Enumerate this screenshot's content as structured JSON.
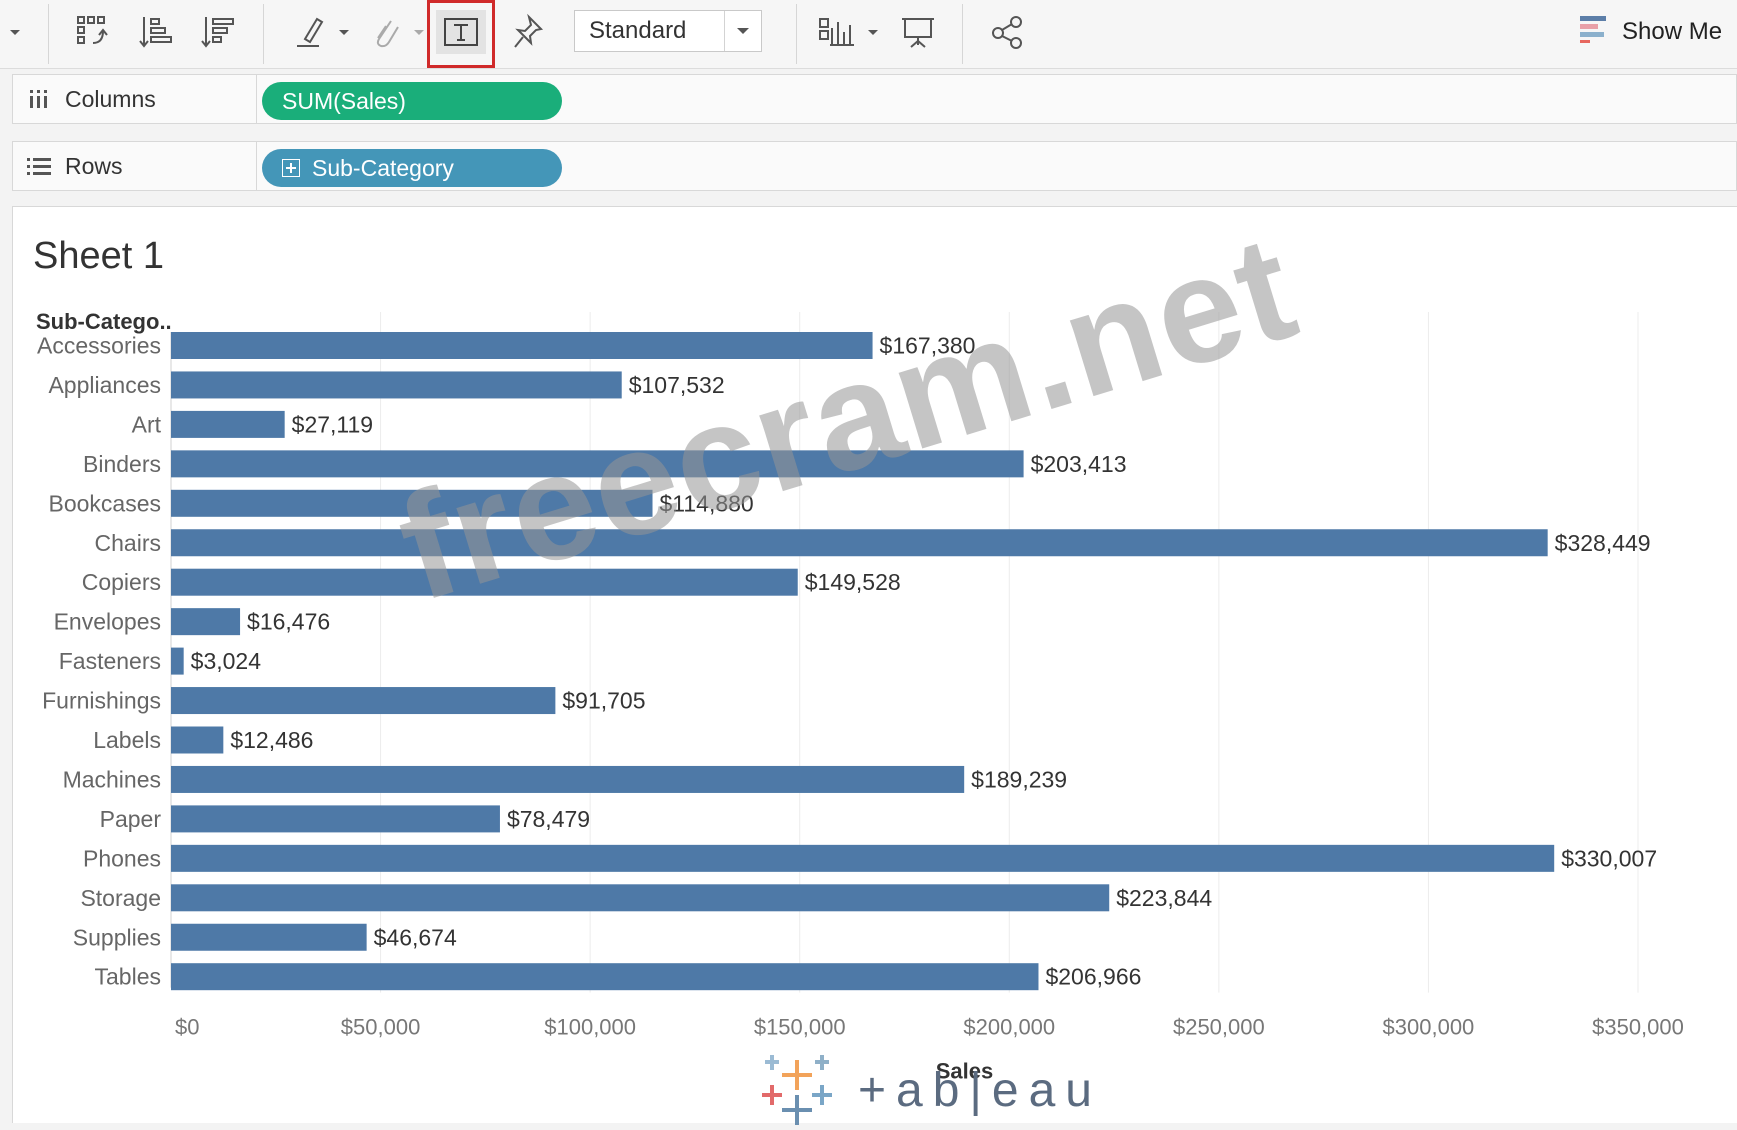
{
  "toolbar": {
    "mark_size_select": "Standard",
    "show_me_label": "Show Me",
    "icons": [
      "swap-icon",
      "sort-ascending-icon",
      "sort-descending-icon",
      "highlight-icon",
      "group-icon",
      "label-text-icon",
      "pin-icon",
      "chart-size-icon",
      "presentation-icon",
      "share-icon"
    ]
  },
  "shelves": {
    "columns": {
      "label": "Columns",
      "pill": "SUM(Sales)"
    },
    "rows": {
      "label": "Rows",
      "pill": "Sub-Category"
    }
  },
  "sheet": {
    "title": "Sheet 1",
    "row_header": "Sub-Catego..",
    "watermark": "freecram.net",
    "logo_text": "+ab|eau"
  },
  "colors": {
    "bar": "#4e79a7",
    "pill_columns": "#1aae7a",
    "pill_rows": "#4496b8",
    "highlight_border": "#d02a2a"
  },
  "chart_data": {
    "type": "bar",
    "orientation": "horizontal",
    "categories": [
      "Accessories",
      "Appliances",
      "Art",
      "Binders",
      "Bookcases",
      "Chairs",
      "Copiers",
      "Envelopes",
      "Fasteners",
      "Furnishings",
      "Labels",
      "Machines",
      "Paper",
      "Phones",
      "Storage",
      "Supplies",
      "Tables"
    ],
    "values": [
      167380,
      107532,
      27119,
      203413,
      114880,
      328449,
      149528,
      16476,
      3024,
      91705,
      12486,
      189239,
      78479,
      330007,
      223844,
      46674,
      206966
    ],
    "data_labels": [
      "$167,380",
      "$107,532",
      "$27,119",
      "$203,413",
      "$114,880",
      "$328,449",
      "$149,528",
      "$16,476",
      "$3,024",
      "$91,705",
      "$12,486",
      "$189,239",
      "$78,479",
      "$330,007",
      "$223,844",
      "$46,674",
      "$206,966"
    ],
    "xlabel": "Sales",
    "ylabel": "Sub-Catego..",
    "xlim": [
      0,
      350000
    ],
    "x_ticks": [
      0,
      50000,
      100000,
      150000,
      200000,
      250000,
      300000,
      350000
    ],
    "x_tick_labels": [
      "$0",
      "$50,000",
      "$100,000",
      "$150,000",
      "$200,000",
      "$250,000",
      "$300,000",
      "$350,000"
    ],
    "grid": "vertical"
  }
}
